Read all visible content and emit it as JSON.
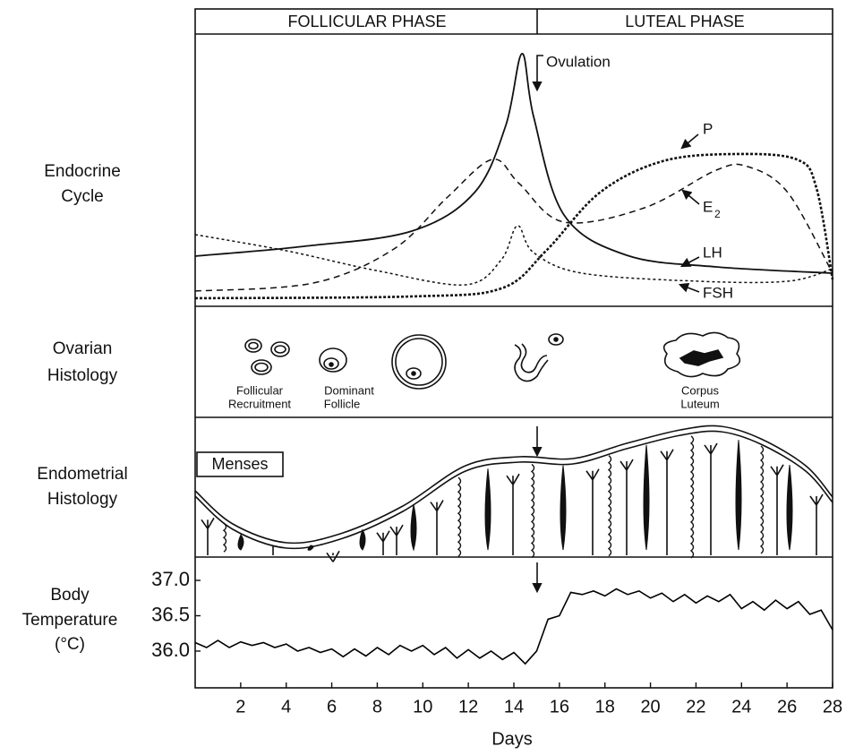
{
  "phases": {
    "follicular": "FOLLICULAR PHASE",
    "luteal": "LUTEAL PHASE"
  },
  "panel_labels": {
    "endocrine": [
      "Endocrine",
      "Cycle"
    ],
    "ovarian": [
      "Ovarian",
      "Histology"
    ],
    "endometrial": [
      "Endometrial",
      "Histology"
    ],
    "temperature": [
      "Body",
      "Temperature",
      "(°C)"
    ]
  },
  "endocrine": {
    "ovulation": "Ovulation",
    "p": "P",
    "e2": {
      "base": "E",
      "sub": "2"
    },
    "lh": "LH",
    "fsh": "FSH"
  },
  "ovarian": {
    "recruitment": [
      "Follicular",
      "Recruitment"
    ],
    "dominant": [
      "Dominant",
      "Follicle"
    ],
    "corpus": [
      "Corpus",
      "Luteum"
    ]
  },
  "endometrial": {
    "menses": "Menses"
  },
  "temperature": {
    "type": "line",
    "xlabel": "Days",
    "x": [
      0,
      0.5,
      1,
      1.5,
      2,
      2.5,
      3,
      3.5,
      4,
      4.5,
      5,
      5.5,
      6,
      6.5,
      7,
      7.5,
      8,
      8.5,
      9,
      9.5,
      10,
      10.5,
      11,
      11.5,
      12,
      12.5,
      13,
      13.5,
      14,
      14.5,
      15,
      15.5,
      16,
      16.5,
      17,
      17.5,
      18,
      18.5,
      19,
      19.5,
      20,
      20.5,
      21,
      21.5,
      22,
      22.5,
      23,
      23.5,
      24,
      24.5,
      25,
      25.5,
      26,
      26.5,
      27,
      27.5,
      28
    ],
    "values": [
      36.12,
      36.05,
      36.15,
      36.05,
      36.13,
      36.08,
      36.12,
      36.05,
      36.1,
      36.0,
      36.05,
      35.98,
      36.03,
      35.92,
      36.03,
      35.93,
      36.05,
      35.95,
      36.08,
      36.0,
      36.08,
      35.95,
      36.05,
      35.9,
      36.02,
      35.9,
      36.0,
      35.88,
      35.98,
      35.82,
      36.0,
      36.45,
      36.5,
      36.83,
      36.8,
      36.85,
      36.78,
      36.88,
      36.8,
      36.85,
      36.75,
      36.82,
      36.7,
      36.8,
      36.68,
      36.78,
      36.7,
      36.8,
      36.6,
      36.7,
      36.58,
      36.72,
      36.6,
      36.7,
      36.52,
      36.58,
      36.3
    ],
    "xlim": [
      0,
      28
    ],
    "ylim": [
      35.48,
      37.33
    ],
    "xticks": [
      2,
      4,
      6,
      8,
      10,
      12,
      14,
      16,
      18,
      20,
      22,
      24,
      26,
      28
    ],
    "yticks": [
      {
        "value": 36,
        "label": "36.0"
      },
      {
        "value": 36.5,
        "label": "36.5"
      },
      {
        "value": 37,
        "label": "37.0"
      }
    ],
    "color": "#000000"
  }
}
